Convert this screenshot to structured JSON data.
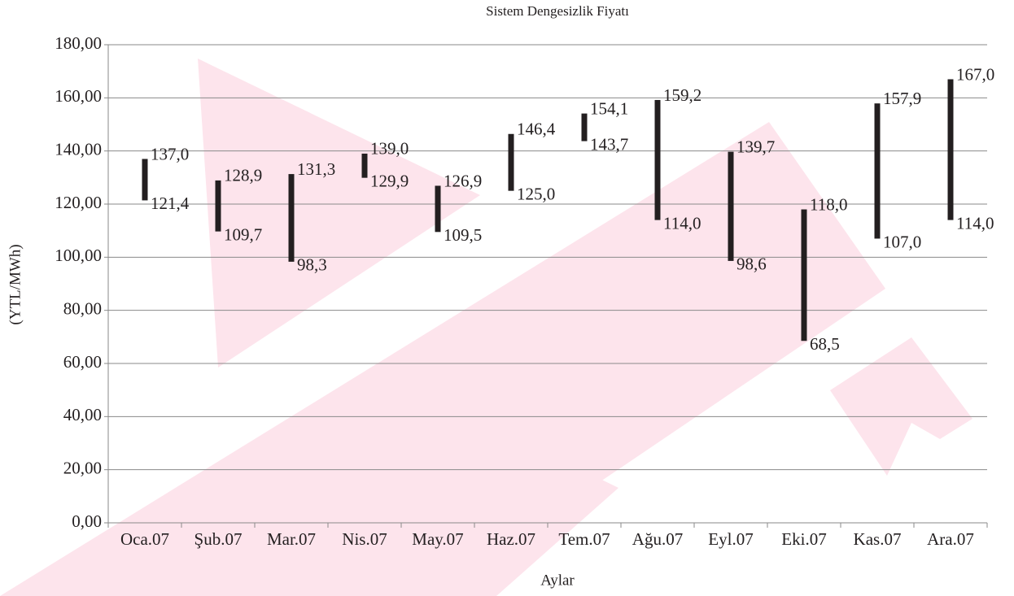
{
  "chart_data": {
    "type": "range",
    "title": "Sistem Dengesizlik Fiyatı",
    "x_label": "Aylar",
    "y_label": "(YTL/MWh)",
    "categories": [
      "Oca.07",
      "Şub.07",
      "Mar.07",
      "Nis.07",
      "May.07",
      "Haz.07",
      "Tem.07",
      "Ağu.07",
      "Eyl.07",
      "Eki.07",
      "Kas.07",
      "Ara.07"
    ],
    "series": [
      {
        "color": "#231f20",
        "values": [
          137.0,
          128.9,
          131.3,
          139.0,
          126.9,
          146.4,
          154.1,
          159.2,
          139.7,
          118.0,
          157.9,
          167.0
        ],
        "value_labels": [
          "137,0",
          "128,9",
          "131,3",
          "139,0",
          "126,9",
          "146,4",
          "154,1",
          "159,2",
          "139,7",
          "118,0",
          "157,9",
          "167,0"
        ]
      },
      {
        "color": "#231f20",
        "values": [
          121.4,
          109.7,
          98.3,
          129.9,
          109.5,
          125.0,
          143.7,
          114.0,
          98.6,
          68.5,
          107.0,
          114.0
        ],
        "value_labels": [
          "121,4",
          "109,7",
          "98,3",
          "129,9",
          "109,5",
          "125,0",
          "143,7",
          "114,0",
          "98,6",
          "68,5",
          "107,0",
          "114,0"
        ]
      }
    ],
    "ylim": [
      0,
      180
    ],
    "yticks": [
      {
        "value": 0,
        "label": "0,00"
      },
      {
        "value": 20,
        "label": "20,00"
      },
      {
        "value": 40,
        "label": "40,00"
      },
      {
        "value": 60,
        "label": "60,00"
      },
      {
        "value": 80,
        "label": "80,00"
      },
      {
        "value": 100,
        "label": "100,00"
      },
      {
        "value": 120,
        "label": "120,00"
      },
      {
        "value": 140,
        "label": "140,00"
      },
      {
        "value": 160,
        "label": "160,00"
      },
      {
        "value": 180,
        "label": "180,00"
      }
    ],
    "grid": true
  }
}
